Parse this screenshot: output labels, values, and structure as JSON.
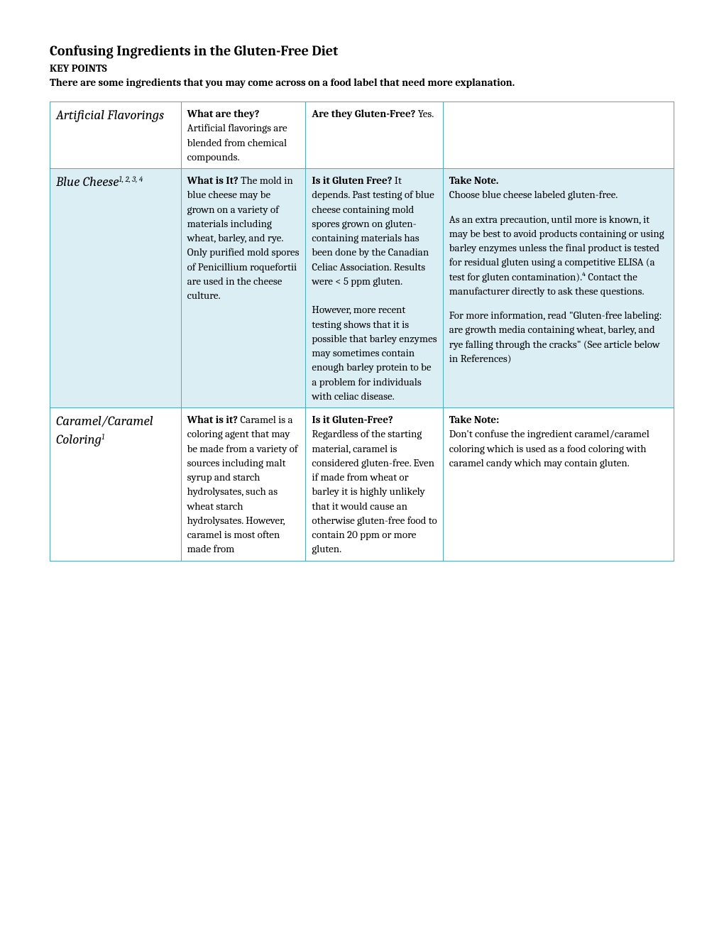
{
  "title": "Confusing Ingredients in the Gluten-Free Diet",
  "subhead": "KEY POINTS",
  "intro": "There are some ingredients that you may come across on a food label that need more explanation.",
  "table": {
    "border_color": "#4bacc6",
    "shade_color": "#dbeef3",
    "rows": [
      {
        "shaded": false,
        "name": "Artificial Flavorings",
        "refs": "",
        "col2_head": "What are they?",
        "col2_body": "Artificial flavorings are blended from chemical compounds.",
        "col3_head": "Are they Gluten-Free? ",
        "col3_body": "Yes.",
        "col4_head": "",
        "col4_paras": []
      },
      {
        "shaded": true,
        "name": "Blue Cheese",
        "refs": "1, 2, 3, 4",
        "col2_head": "What is It?",
        "col2_body": "The mold in blue cheese may be grown on a variety of materials including wheat, barley, and rye. Only purified mold spores of Penicillium roquefortii are used in the cheese culture.",
        "col3_head": "Is it Gluten Free?",
        "col3_paras": [
          "It depends. Past testing of blue cheese containing mold spores grown on gluten-containing materials has been done by the Canadian Celiac Association. Results were < 5 ppm gluten.",
          "However, more recent testing shows that it is possible that barley enzymes may sometimes contain enough barley protein to be a problem for individuals with celiac disease."
        ],
        "col4_head": "Take Note.",
        "col4_paras": [
          "Choose blue cheese labeled gluten-free.",
          "As an extra precaution, until more is known, it may be best to avoid products containing or using barley enzymes unless the final product is tested for residual gluten using a competitive ELISA (a test for gluten contamination).⁴ Contact the manufacturer directly to ask these questions.",
          "For more information, read \"Gluten-free labeling: are growth media containing wheat, barley, and rye falling through the cracks\" (See article below in References)"
        ]
      },
      {
        "shaded": false,
        "name": "Caramel/Caramel Coloring",
        "refs": "1",
        "col2_head": "What is it?",
        "col2_body": "Caramel is a coloring agent that may be made from a variety of sources including malt syrup and starch hydrolysates, such as wheat starch hydrolysates. However, caramel is most often made from",
        "col3_head": "Is it Gluten-Free?",
        "col3_body": "Regardless of the starting material, caramel is considered gluten-free. Even if made from wheat or barley it is highly unlikely that it would cause an otherwise gluten-free food to contain 20 ppm or more gluten.",
        "col4_head": "Take Note:",
        "col4_paras": [
          "Don't confuse the ingredient caramel/caramel coloring which is used as a food coloring with caramel candy which may contain gluten."
        ]
      }
    ]
  }
}
